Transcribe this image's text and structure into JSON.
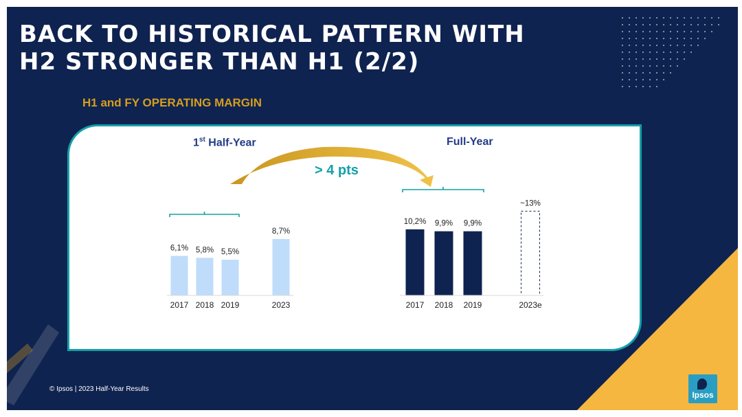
{
  "slide": {
    "title_line1": "BACK TO HISTORICAL PATTERN WITH",
    "title_line2": "H2 STRONGER THAN H1 (2/2)",
    "subtitle": "H1 and FY OPERATING MARGIN",
    "footer": "© Ipsos | 2023 Half-Year Results",
    "logo_text": "Ipsos"
  },
  "colors": {
    "background": "#0f2350",
    "accent_gold": "#d69e1f",
    "teal": "#13a0a8",
    "h1_bar": "#bfdcfb",
    "fy_bar": "#0f2350",
    "section_title": "#233b87",
    "triangle_yellow": "#f5b73f"
  },
  "chart_data": [
    {
      "type": "bar",
      "title_main": "1",
      "title_sup": "st",
      "title_rest": " Half-Year",
      "categories": [
        "2017",
        "2018",
        "2019",
        "2023"
      ],
      "values": [
        6.1,
        5.8,
        5.5,
        8.7
      ],
      "labels": [
        "6,1%",
        "5,8%",
        "5,5%",
        "8,7%"
      ],
      "unit": "%",
      "bracket_over": [
        "2017",
        "2018",
        "2019"
      ]
    },
    {
      "type": "bar",
      "title": "Full-Year",
      "categories": [
        "2017",
        "2018",
        "2019",
        "2023e"
      ],
      "values": [
        10.2,
        9.9,
        9.9,
        13
      ],
      "labels": [
        "10,2%",
        "9,9%",
        "9,9%",
        "~13%"
      ],
      "unit": "%",
      "estimated": [
        false,
        false,
        false,
        true
      ],
      "bracket_over": [
        "2017",
        "2018",
        "2019"
      ]
    }
  ],
  "annotation": {
    "text": "> 4 pts"
  }
}
